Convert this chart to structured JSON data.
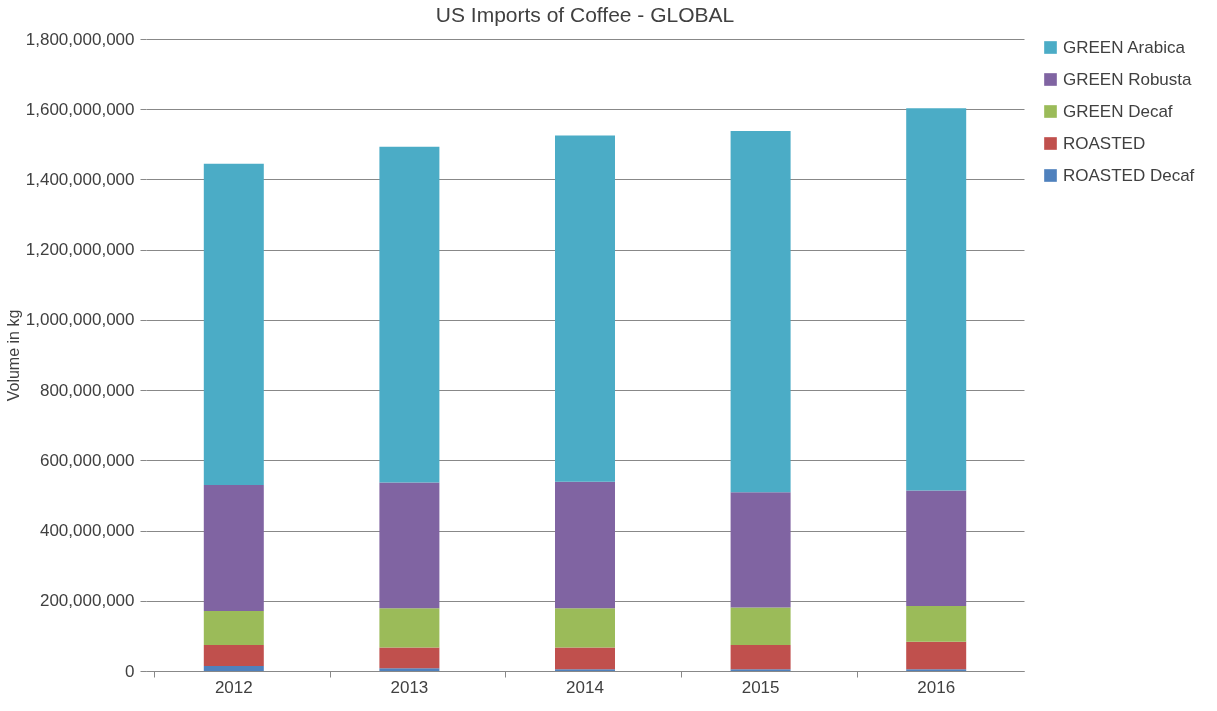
{
  "chart_data": {
    "type": "bar",
    "title": "US Imports of Coffee - GLOBAL",
    "ylabel": "Volume in kg",
    "stacked": true,
    "categories": [
      "2012",
      "2013",
      "2014",
      "2015",
      "2016"
    ],
    "series": [
      {
        "name": "ROASTED Decaf",
        "color": "#4f81bd",
        "values": [
          14000000,
          8000000,
          5000000,
          5000000,
          5000000
        ]
      },
      {
        "name": "ROASTED",
        "color": "#c0504d",
        "values": [
          60000000,
          59000000,
          62000000,
          69000000,
          78000000
        ]
      },
      {
        "name": "GREEN Decaf",
        "color": "#9bbb59",
        "values": [
          97000000,
          112000000,
          112000000,
          107000000,
          102000000
        ]
      },
      {
        "name": "GREEN Robusta",
        "color": "#8064a2",
        "values": [
          359000000,
          358000000,
          360000000,
          328000000,
          329000000
        ]
      },
      {
        "name": "GREEN Arabica",
        "color": "#4bacc6",
        "values": [
          915000000,
          956000000,
          986000000,
          1029000000,
          1089000000
        ]
      }
    ],
    "ylim": [
      0,
      1800000000
    ],
    "yticks": [
      0,
      {
        "value": 200000000,
        "label": "200,000,000"
      },
      {
        "value": 400000000,
        "label": "400,000,000"
      },
      {
        "value": 600000000,
        "label": "600,000,000"
      },
      {
        "value": 800000000,
        "label": "800,000,000"
      },
      {
        "value": 1000000000,
        "label": "1,000,000,000"
      },
      {
        "value": 1200000000,
        "label": "1,200,000,000"
      },
      {
        "value": 1400000000,
        "label": "1,400,000,000"
      },
      {
        "value": 1600000000,
        "label": "1,600,000,000"
      },
      {
        "value": 1800000000,
        "label": "1,800,000,000"
      }
    ],
    "grid": "y",
    "legend": "right"
  }
}
